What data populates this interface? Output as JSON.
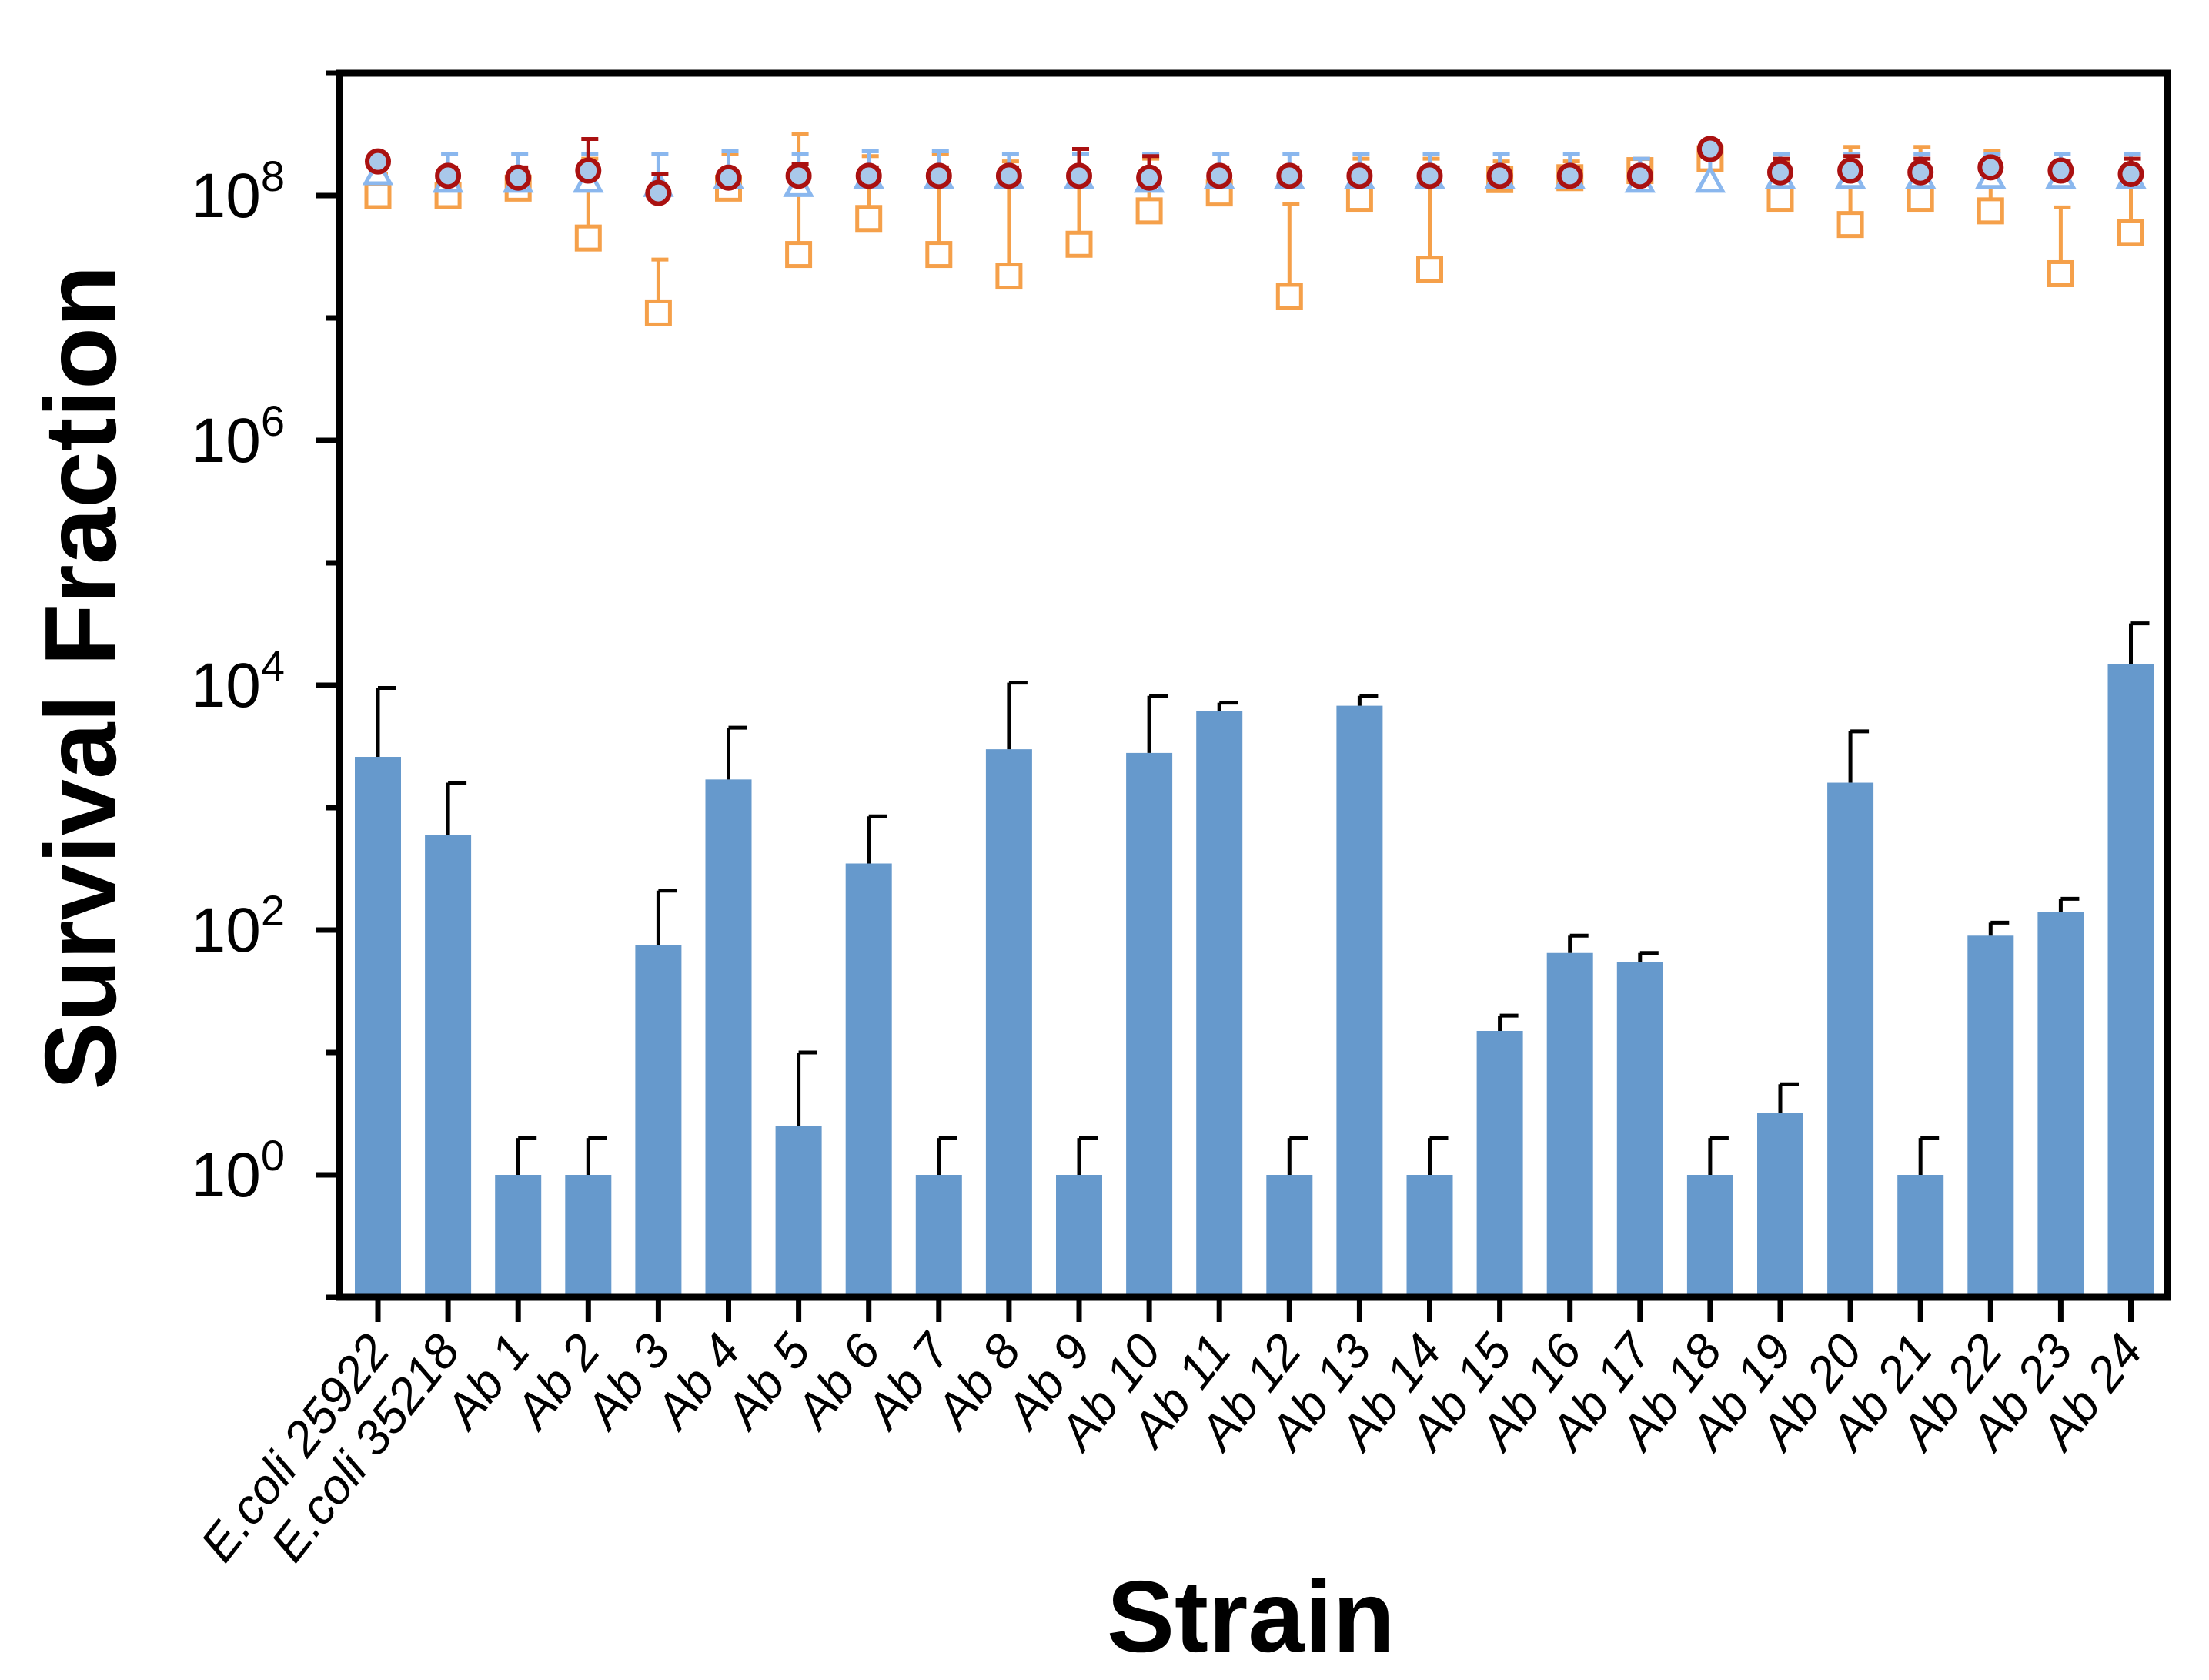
{
  "chart_data": {
    "type": "bar",
    "title": "",
    "xlabel": "Strain",
    "ylabel": "Survival Fraction",
    "yscale": "log10",
    "ylim": [
      0.1,
      1000000000
    ],
    "y_tick_labels": [
      {
        "value": 1,
        "base": "10",
        "exp": "0"
      },
      {
        "value": 100,
        "base": "10",
        "exp": "2"
      },
      {
        "value": 10000,
        "base": "10",
        "exp": "4"
      },
      {
        "value": 1000000,
        "base": "10",
        "exp": "6"
      },
      {
        "value": 100000000,
        "base": "10",
        "exp": "8"
      }
    ],
    "categories": [
      "E.coli 25922",
      "E.coli 35218",
      "Ab 1",
      "Ab 2",
      "Ab 3",
      "Ab 4",
      "Ab 5",
      "Ab 6",
      "Ab 7",
      "Ab 8",
      "Ab 9",
      "Ab 10",
      "Ab 11",
      "Ab 12",
      "Ab 13",
      "Ab 14",
      "Ab 15",
      "Ab 16",
      "Ab 17",
      "Ab 18",
      "Ab 19",
      "Ab 20",
      "Ab 21",
      "Ab 22",
      "Ab 23",
      "Ab 24"
    ],
    "bar_series": {
      "color": "#6699cc",
      "values": [
        2600,
        600,
        1,
        1,
        75,
        1700,
        2.5,
        350,
        1,
        3000,
        1,
        2800,
        6200,
        1,
        6800,
        1,
        15,
        65,
        55,
        1,
        3.2,
        1600,
        1,
        90,
        140,
        15000
      ],
      "error_upper": [
        9500,
        1600,
        2,
        2,
        210,
        4500,
        10,
        850,
        2,
        10500,
        2,
        8200,
        7200,
        2,
        8200,
        2,
        20,
        90,
        65,
        2,
        5.5,
        4200,
        2,
        115,
        180,
        32000
      ]
    },
    "marker_series": [
      {
        "name": "squares",
        "marker": "square",
        "color": "#f5a04a",
        "values": [
          100000000.0,
          100000000.0,
          115000000.0,
          45000000.0,
          11000000.0,
          115000000.0,
          33000000.0,
          65000000.0,
          33000000.0,
          22000000.0,
          40000000.0,
          75000000.0,
          105000000.0,
          15000000.0,
          95000000.0,
          25000000.0,
          135000000.0,
          140000000.0,
          160000000.0,
          200000000.0,
          95000000.0,
          58000000.0,
          95000000.0,
          75000000.0,
          23000000.0,
          50000000.0
        ],
        "error_upper": [
          150000000.0,
          130000000.0,
          140000000.0,
          200000000.0,
          30000000.0,
          220000000.0,
          320000000.0,
          210000000.0,
          220000000.0,
          190000000.0,
          220000000.0,
          200000000.0,
          160000000.0,
          85000000.0,
          200000000.0,
          200000000.0,
          190000000.0,
          190000000.0,
          200000000.0,
          250000000.0,
          190000000.0,
          250000000.0,
          250000000.0,
          230000000.0,
          80000000.0,
          200000000.0
        ]
      },
      {
        "name": "triangles",
        "marker": "triangle",
        "color": "#8ab7ee",
        "values": [
          150000000.0,
          130000000.0,
          130000000.0,
          130000000.0,
          120000000.0,
          140000000.0,
          120000000.0,
          140000000.0,
          140000000.0,
          140000000.0,
          140000000.0,
          130000000.0,
          140000000.0,
          140000000.0,
          140000000.0,
          140000000.0,
          140000000.0,
          140000000.0,
          130000000.0,
          130000000.0,
          140000000.0,
          140000000.0,
          140000000.0,
          140000000.0,
          140000000.0,
          140000000.0
        ],
        "error_upper": [
          220000000.0,
          220000000.0,
          220000000.0,
          220000000.0,
          220000000.0,
          230000000.0,
          220000000.0,
          230000000.0,
          230000000.0,
          220000000.0,
          220000000.0,
          220000000.0,
          220000000.0,
          220000000.0,
          220000000.0,
          220000000.0,
          220000000.0,
          220000000.0,
          200000000.0,
          220000000.0,
          220000000.0,
          220000000.0,
          220000000.0,
          220000000.0,
          220000000.0,
          220000000.0
        ]
      },
      {
        "name": "circles",
        "marker": "circle",
        "color": "#aa1111",
        "values": [
          190000000.0,
          145000000.0,
          140000000.0,
          160000000.0,
          105000000.0,
          140000000.0,
          145000000.0,
          145000000.0,
          145000000.0,
          145000000.0,
          145000000.0,
          140000000.0,
          145000000.0,
          145000000.0,
          145000000.0,
          145000000.0,
          145000000.0,
          145000000.0,
          145000000.0,
          240000000.0,
          155000000.0,
          160000000.0,
          155000000.0,
          170000000.0,
          160000000.0,
          150000000.0
        ],
        "error_upper": [
          210000000.0,
          170000000.0,
          170000000.0,
          290000000.0,
          150000000.0,
          160000000.0,
          180000000.0,
          170000000.0,
          170000000.0,
          170000000.0,
          240000000.0,
          210000000.0,
          170000000.0,
          170000000.0,
          170000000.0,
          170000000.0,
          170000000.0,
          170000000.0,
          170000000.0,
          280000000.0,
          200000000.0,
          210000000.0,
          200000000.0,
          200000000.0,
          190000000.0,
          200000000.0
        ]
      }
    ]
  }
}
